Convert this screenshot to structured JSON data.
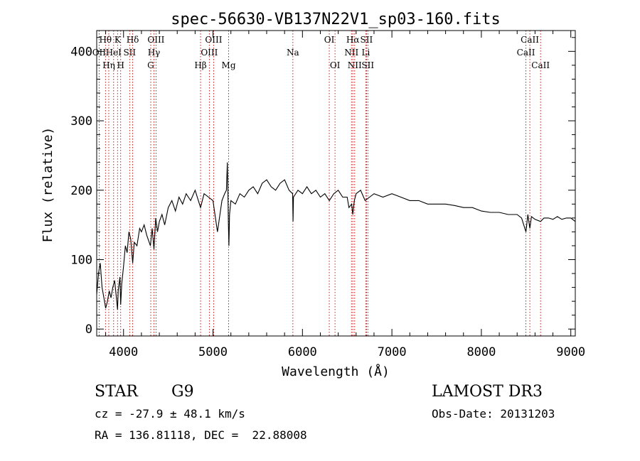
{
  "chart_data": {
    "type": "line",
    "title": "spec-56630-VB137N22V1_sp03-160.fits",
    "xlabel": "Wavelength (Å)",
    "ylabel": "Flux (relative)",
    "xlim": [
      3700,
      9050
    ],
    "ylim": [
      -10,
      430
    ],
    "xticks": [
      4000,
      5000,
      6000,
      7000,
      8000,
      9000
    ],
    "yticks": [
      0,
      100,
      200,
      300,
      400
    ],
    "series": [
      {
        "name": "spectrum",
        "x": [
          3700,
          3720,
          3740,
          3760,
          3780,
          3800,
          3820,
          3840,
          3860,
          3880,
          3900,
          3920,
          3933,
          3940,
          3960,
          3968,
          3980,
          4000,
          4020,
          4040,
          4060,
          4080,
          4102,
          4120,
          4150,
          4180,
          4200,
          4230,
          4260,
          4300,
          4320,
          4340,
          4360,
          4380,
          4400,
          4430,
          4460,
          4500,
          4540,
          4580,
          4620,
          4660,
          4700,
          4750,
          4800,
          4861,
          4900,
          4950,
          5000,
          5050,
          5100,
          5130,
          5150,
          5160,
          5167,
          5172,
          5178,
          5185,
          5200,
          5250,
          5300,
          5350,
          5400,
          5450,
          5500,
          5550,
          5600,
          5650,
          5700,
          5750,
          5800,
          5850,
          5890,
          5895,
          5900,
          5950,
          6000,
          6050,
          6100,
          6150,
          6200,
          6250,
          6300,
          6350,
          6400,
          6450,
          6500,
          6520,
          6550,
          6563,
          6580,
          6600,
          6650,
          6700,
          6750,
          6800,
          6900,
          7000,
          7100,
          7200,
          7300,
          7400,
          7500,
          7600,
          7700,
          7800,
          7900,
          8000,
          8100,
          8200,
          8300,
          8400,
          8450,
          8498,
          8520,
          8542,
          8560,
          8600,
          8662,
          8700,
          8750,
          8800,
          8850,
          8900,
          8950,
          9000,
          9050
        ],
        "values": [
          50,
          80,
          95,
          60,
          45,
          30,
          40,
          55,
          45,
          60,
          70,
          45,
          28,
          55,
          75,
          35,
          65,
          90,
          120,
          110,
          140,
          130,
          95,
          125,
          120,
          145,
          140,
          150,
          135,
          120,
          145,
          115,
          160,
          140,
          155,
          165,
          150,
          175,
          185,
          170,
          190,
          180,
          195,
          185,
          200,
          175,
          195,
          190,
          185,
          140,
          185,
          195,
          200,
          240,
          200,
          150,
          120,
          165,
          185,
          180,
          195,
          190,
          200,
          205,
          195,
          210,
          215,
          205,
          200,
          210,
          215,
          200,
          195,
          155,
          190,
          200,
          195,
          205,
          195,
          200,
          190,
          195,
          185,
          195,
          200,
          190,
          190,
          175,
          180,
          165,
          185,
          195,
          200,
          185,
          190,
          195,
          190,
          195,
          190,
          185,
          185,
          180,
          180,
          180,
          178,
          175,
          175,
          170,
          168,
          168,
          165,
          165,
          160,
          140,
          165,
          145,
          162,
          158,
          155,
          160,
          160,
          158,
          162,
          158,
          160,
          160,
          155
        ]
      }
    ],
    "lines": [
      {
        "label": "OII",
        "wavelength": 3727,
        "row": 1
      },
      {
        "label": "Hθ",
        "wavelength": 3798,
        "row": 0
      },
      {
        "label": "Hη",
        "wavelength": 3835,
        "row": 2
      },
      {
        "label": "HeI",
        "wavelength": 3889,
        "row": 1
      },
      {
        "label": "K",
        "wavelength": 3933,
        "row": 0
      },
      {
        "label": "SII",
        "wavelength": 4068,
        "row": 1
      },
      {
        "label": "H",
        "wavelength": 3968,
        "row": 2
      },
      {
        "label": "Hδ",
        "wavelength": 4102,
        "row": 0
      },
      {
        "label": "OIII",
        "wavelength": 4363,
        "row": 0
      },
      {
        "label": "Hγ",
        "wavelength": 4340,
        "row": 1
      },
      {
        "label": "G",
        "wavelength": 4304,
        "row": 2
      },
      {
        "label": "OIII",
        "wavelength": 5007,
        "row": 0
      },
      {
        "label": "OIII",
        "wavelength": 4959,
        "row": 1
      },
      {
        "label": "Hβ",
        "wavelength": 4861,
        "row": 2
      },
      {
        "label": "Mg",
        "wavelength": 5175,
        "row": 2
      },
      {
        "label": "Na",
        "wavelength": 5893,
        "row": 1
      },
      {
        "label": "OI",
        "wavelength": 6300,
        "row": 0
      },
      {
        "label": "OI",
        "wavelength": 6364,
        "row": 2
      },
      {
        "label": "Hα",
        "wavelength": 6563,
        "row": 0
      },
      {
        "label": "SII",
        "wavelength": 6716,
        "row": 0
      },
      {
        "label": "NII",
        "wavelength": 6548,
        "row": 1
      },
      {
        "label": "Li",
        "wavelength": 6708,
        "row": 1
      },
      {
        "label": "NII",
        "wavelength": 6584,
        "row": 2
      },
      {
        "label": "SII",
        "wavelength": 6731,
        "row": 2
      },
      {
        "label": "CaII",
        "wavelength": 8542,
        "row": 0
      },
      {
        "label": "CaII",
        "wavelength": 8498,
        "row": 1
      },
      {
        "label": "CaII",
        "wavelength": 8662,
        "row": 2
      }
    ]
  },
  "info": {
    "class_label": "STAR",
    "subclass": "G9",
    "survey": "LAMOST DR3",
    "cz": "cz = -27.9 ± 48.1 km/s",
    "obs_date": "Obs-Date: 20131203",
    "coords": "RA = 136.81118, DEC =  22.88008"
  },
  "colors": {
    "line_marker": "#c00000",
    "spectrum": "#000000"
  }
}
